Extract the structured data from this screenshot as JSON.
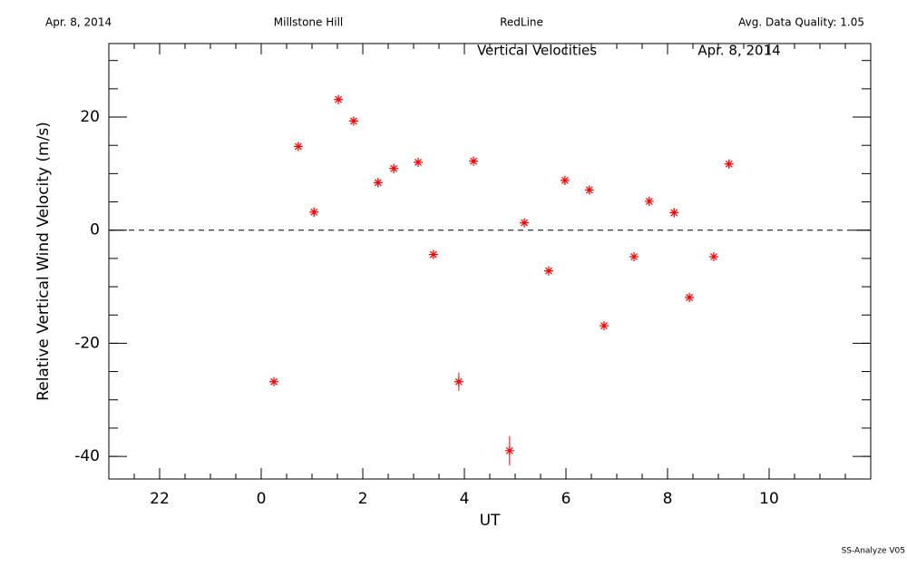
{
  "header": {
    "date": "Apr. 8, 2014",
    "site": "Millstone Hill",
    "instrument": "RedLine",
    "quality": "Avg. Data Quality: 1.05"
  },
  "footer": "SS-Analyze V05",
  "chart_data": {
    "type": "scatter",
    "title": "Vertical Velocities",
    "subtitle": "Apr. 8, 2014",
    "x_label": "UT",
    "y_label": "Relative Vertical Wind Velocity (m/s)",
    "x": [
      0.25,
      0.73,
      1.04,
      1.52,
      1.82,
      2.3,
      2.61,
      3.09,
      3.39,
      3.89,
      4.18,
      4.89,
      5.18,
      5.66,
      5.98,
      6.46,
      6.75,
      7.34,
      7.64,
      8.13,
      8.43,
      8.91,
      9.21
    ],
    "values": [
      -26.8,
      14.8,
      3.2,
      23.1,
      19.3,
      8.4,
      10.9,
      12.0,
      -4.3,
      -26.8,
      12.2,
      -39.0,
      1.3,
      -7.2,
      8.8,
      7.1,
      -16.9,
      -4.7,
      5.1,
      3.1,
      -11.9,
      -4.7,
      11.7
    ],
    "errors": [
      0.8,
      0.8,
      0.8,
      0.8,
      0.8,
      0.8,
      0.8,
      0.8,
      0.8,
      1.6,
      0.8,
      2.6,
      0.8,
      0.8,
      0.8,
      0.8,
      0.8,
      0.8,
      0.8,
      0.8,
      0.8,
      0.8,
      0.8
    ],
    "color": "#ff0000",
    "xlim": [
      -3,
      12
    ],
    "ylim": [
      -44,
      33
    ],
    "xticks": [
      {
        "value": -2,
        "label": "22"
      },
      0,
      2,
      4,
      6,
      8,
      10
    ],
    "yticks": [
      -40,
      -20,
      0,
      20
    ],
    "xminor": 0.5,
    "yminor": 5,
    "zero_line": 0
  }
}
